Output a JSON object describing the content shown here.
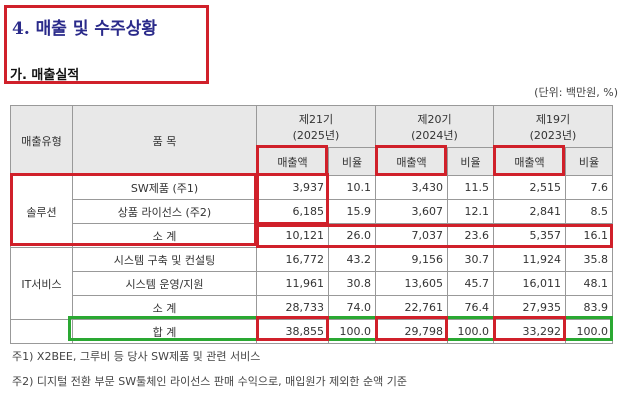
{
  "heading": {
    "title": "4. 매출 및 수주상황",
    "subtitle": "가. 매출실적",
    "unit": "(단위: 백만원, %)"
  },
  "table": {
    "col_type": "매출유형",
    "col_item": "품 목",
    "periods": [
      {
        "label": "제21기",
        "year": "(2025년)"
      },
      {
        "label": "제20기",
        "year": "(2024년)"
      },
      {
        "label": "제19기",
        "year": "(2023년)"
      }
    ],
    "amount_label": "매출액",
    "ratio_label": "비율",
    "groups": [
      {
        "type": "솔루션",
        "rows": [
          {
            "item": "SW제품 (주1)",
            "values": [
              "3,937",
              "10.1",
              "3,430",
              "11.5",
              "2,515",
              "7.6"
            ]
          },
          {
            "item": "상품 라이선스 (주2)",
            "values": [
              "6,185",
              "15.9",
              "3,607",
              "12.1",
              "2,841",
              "8.5"
            ]
          },
          {
            "item": "소 계",
            "values": [
              "10,121",
              "26.0",
              "7,037",
              "23.6",
              "5,357",
              "16.1"
            ]
          }
        ]
      },
      {
        "type": "IT서비스",
        "rows": [
          {
            "item": "시스템 구축 및 컨설팅",
            "values": [
              "16,772",
              "43.2",
              "9,156",
              "30.7",
              "11,924",
              "35.8"
            ]
          },
          {
            "item": "시스템 운영/지원",
            "values": [
              "11,961",
              "30.8",
              "13,605",
              "45.7",
              "16,011",
              "48.1"
            ]
          },
          {
            "item": "소 계",
            "values": [
              "28,733",
              "74.0",
              "22,761",
              "76.4",
              "27,935",
              "83.9"
            ]
          }
        ]
      }
    ],
    "total": {
      "item": "합 계",
      "values": [
        "38,855",
        "100.0",
        "29,798",
        "100.0",
        "33,292",
        "100.0"
      ]
    }
  },
  "footnotes": [
    "주1) X2BEE, 그루비 등 당사 SW제품 및 관련 서비스",
    "주2) 디지털 전환 부문 SW툴체인 라이선스 판매 수익으로, 매입원가 제외한 순액 기준"
  ],
  "colors": {
    "highlight_red": "#d0202a",
    "highlight_green": "#2aa832",
    "title_blue": "#2a2a8a"
  }
}
